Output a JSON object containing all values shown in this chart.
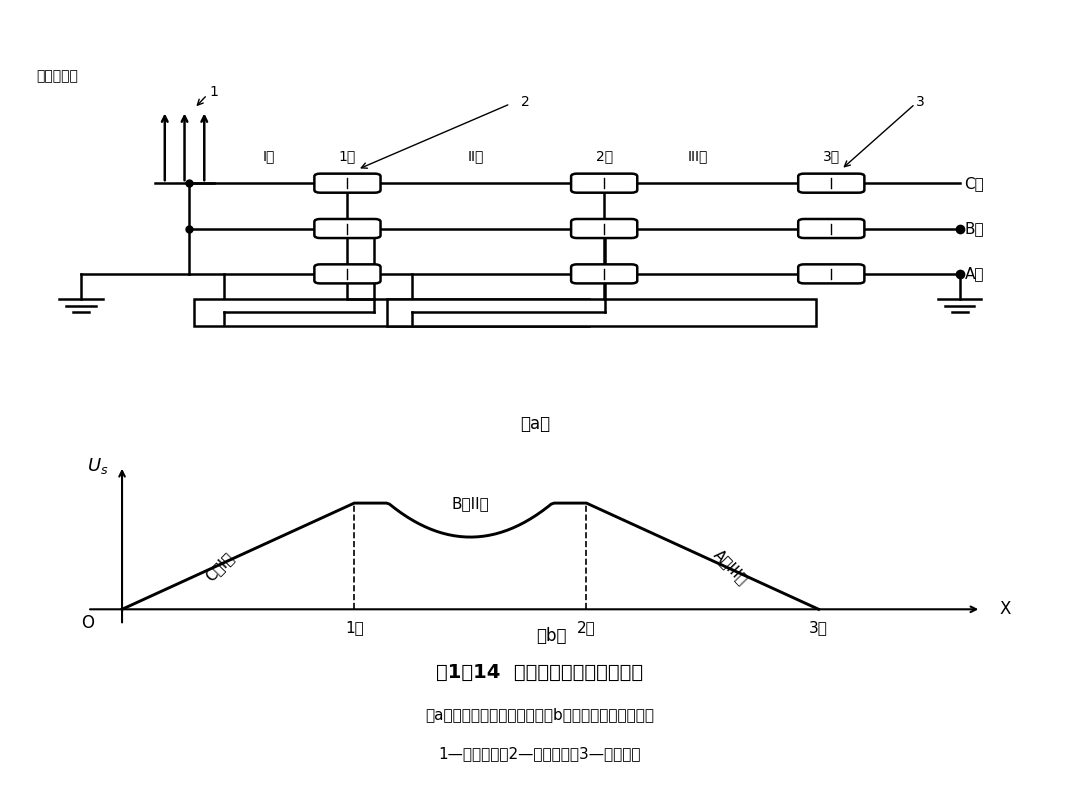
{
  "bg_color": "#ffffff",
  "line_color": "#000000",
  "fig_title": "图1－14  电缆金属护套的交叉互联",
  "fig_subtitle1": "（a）交叉互联接法示意图；（b）沿线感应电压分布图",
  "fig_subtitle2": "1—电缆终端；2—绝缘接头；3—直通接头",
  "label_a": "（a）",
  "label_b": "（b）",
  "terminal_label": "电缆终端头",
  "terminal_num": "1",
  "label_2": "2",
  "label_3": "3",
  "sec1": "I段",
  "sec2": "II段",
  "sec3": "III段",
  "conn1": "1号",
  "conn2": "2号",
  "conn3": "3号",
  "phase_C": "C相",
  "phase_B": "B相",
  "phase_A": "A相",
  "plot_xlabel": "X",
  "plot_Us": "$U_s$",
  "origin": "O",
  "seg_label_C": "C相I段",
  "seg_label_B": "B相II段",
  "seg_label_A": "A相III段",
  "tick1": "1号",
  "tick2": "2号",
  "tick3": "3号"
}
